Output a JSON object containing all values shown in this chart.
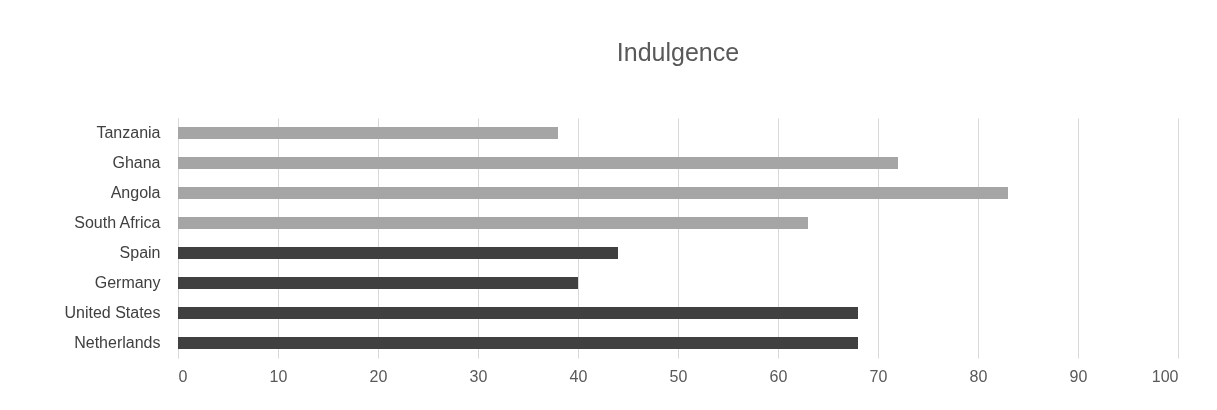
{
  "chart_data": {
    "type": "bar",
    "orientation": "horizontal",
    "title": "Indulgence",
    "categories": [
      "Tanzania",
      "Ghana",
      "Angola",
      "South Africa",
      "Spain",
      "Germany",
      "United States",
      "Netherlands"
    ],
    "values": [
      38,
      72,
      83,
      63,
      44,
      40,
      68,
      68
    ],
    "colors": [
      "#a5a5a5",
      "#a5a5a5",
      "#a5a5a5",
      "#a5a5a5",
      "#404040",
      "#404040",
      "#404040",
      "#404040"
    ],
    "xlim": [
      0,
      100
    ],
    "xticks": [
      0,
      10,
      20,
      30,
      40,
      50,
      60,
      70,
      80,
      90,
      100
    ],
    "grid": "x"
  }
}
